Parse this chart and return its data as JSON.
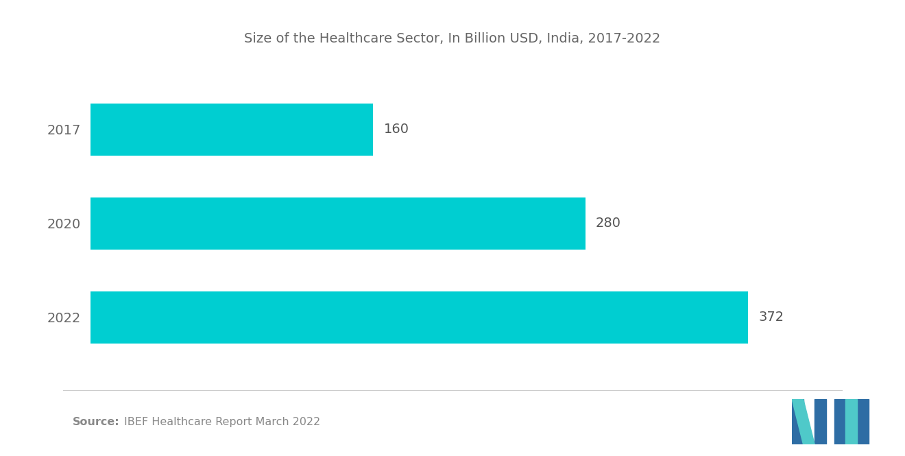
{
  "title": "Size of the Healthcare Sector, In Billion USD, India, 2017-2022",
  "years": [
    "2017",
    "2020",
    "2022"
  ],
  "values": [
    160,
    280,
    372
  ],
  "bar_color": "#00CED1",
  "background_color": "#FFFFFF",
  "text_color": "#666666",
  "label_color": "#555555",
  "source_bold": "Source:",
  "source_text": "IBEF Healthcare Report March 2022",
  "xlim": [
    0,
    420
  ],
  "bar_height": 0.55,
  "title_fontsize": 14,
  "label_fontsize": 14,
  "value_fontsize": 14,
  "source_fontsize": 11.5
}
